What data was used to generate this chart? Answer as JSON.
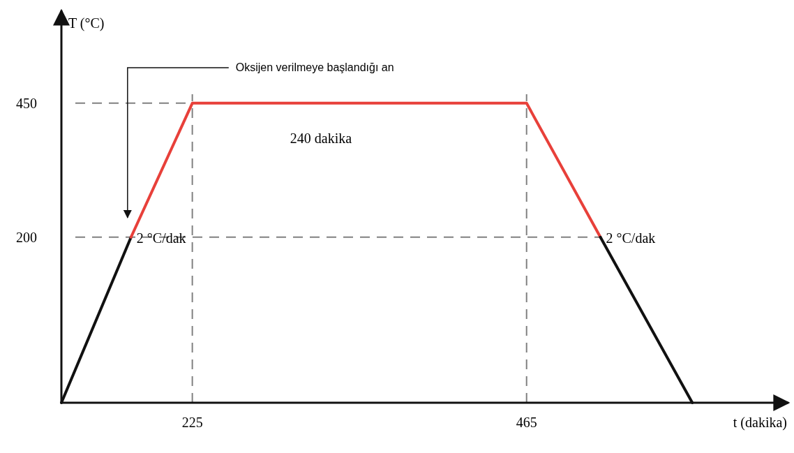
{
  "chart_data": {
    "type": "line",
    "xlabel": "t (dakika)",
    "ylabel": "T (°C)",
    "xlim": [
      131,
      653
    ],
    "ylim": [
      -109,
      623
    ],
    "xticks": [
      225,
      465
    ],
    "yticks": [
      200,
      450
    ],
    "series": [
      {
        "x": [
          131,
          181
        ],
        "values": [
          -109,
          200
        ],
        "color": "#111111"
      },
      {
        "x": [
          181,
          225,
          465,
          518
        ],
        "values": [
          200,
          450,
          450,
          200
        ],
        "color": "#e8403a"
      },
      {
        "x": [
          518,
          584
        ],
        "values": [
          200,
          -109
        ],
        "color": "#111111"
      }
    ],
    "ref_lines": [
      {
        "axis": "y",
        "value": 200,
        "color": "#808080",
        "line_style": "dashed"
      },
      {
        "axis": "y",
        "value": 450,
        "color": "#808080",
        "line_style": "dashed"
      },
      {
        "axis": "x",
        "value": 225,
        "color": "#808080",
        "line_style": "dashed"
      },
      {
        "axis": "x",
        "value": 465,
        "color": "#808080",
        "line_style": "dashed"
      }
    ],
    "annotations": [
      "Oksijen verilmeye başlandığı an",
      {
        "text": "2 °C/dak",
        "x": 181,
        "y": 200
      },
      {
        "text": "2 °C/dak",
        "x": 518,
        "y": 200
      },
      "240 dakika"
    ],
    "grid": false,
    "marker": "none",
    "line_style": "solid"
  }
}
